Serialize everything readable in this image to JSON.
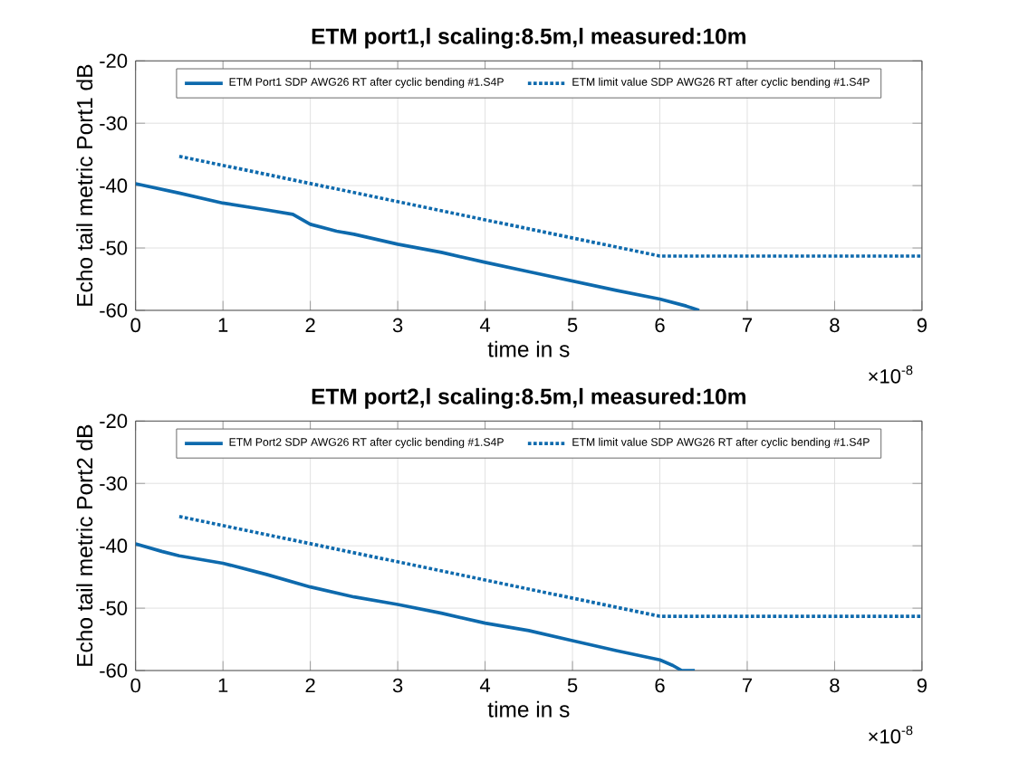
{
  "chart_data": [
    {
      "type": "line",
      "title": "ETM port1,l scaling:8.5m,l measured:10m",
      "xlabel": "time in s",
      "ylabel": "Echo tail metric Port1 dB",
      "xlim": [
        0,
        9
      ],
      "ylim": [
        -60,
        -20
      ],
      "xticks": [
        0,
        1,
        2,
        3,
        4,
        5,
        6,
        7,
        8,
        9
      ],
      "yticks": [
        -60,
        -50,
        -40,
        -30,
        -20
      ],
      "grid": true,
      "legend": "top",
      "annotations": [
        "×10$^{-8}$"
      ],
      "series": [
        {
          "name": "ETM Port1 SDP AWG26 RT after cyclic bending #1.S4P",
          "color": "#0e6aad",
          "line_style": "solid",
          "x": [
            0,
            0.5,
            1,
            1.5,
            1.8,
            2,
            2.3,
            2.5,
            3,
            3.5,
            4,
            4.5,
            5,
            5.5,
            6,
            6.3,
            6.45
          ],
          "values": [
            -39.7,
            -41.2,
            -42.8,
            -43.9,
            -44.6,
            -46.2,
            -47.3,
            -47.8,
            -49.4,
            -50.7,
            -52.3,
            -53.8,
            -55.3,
            -56.8,
            -58.2,
            -59.3,
            -60
          ]
        },
        {
          "name": "ETM limit value SDP AWG26 RT after cyclic bending #1.S4P",
          "color": "#0e6aad",
          "line_style": "dotted",
          "x": [
            0.5,
            6,
            9
          ],
          "values": [
            -35.3,
            -51.3,
            -51.3
          ]
        }
      ]
    },
    {
      "type": "line",
      "title": "ETM port2,l scaling:8.5m,l measured:10m",
      "xlabel": "time in s",
      "ylabel": "Echo tail metric Port2 dB",
      "xlim": [
        0,
        9
      ],
      "ylim": [
        -60,
        -20
      ],
      "xticks": [
        0,
        1,
        2,
        3,
        4,
        5,
        6,
        7,
        8,
        9
      ],
      "yticks": [
        -60,
        -50,
        -40,
        -30,
        -20
      ],
      "grid": true,
      "legend": "top",
      "annotations": [
        "×10$^{-8}$"
      ],
      "series": [
        {
          "name": "ETM Port2 SDP AWG26 RT after cyclic bending #1.S4P",
          "color": "#0e6aad",
          "line_style": "solid",
          "x": [
            0,
            0.3,
            0.5,
            1,
            1.5,
            2,
            2.5,
            3,
            3.5,
            4,
            4.5,
            5,
            5.5,
            6,
            6.15,
            6.25,
            6.4
          ],
          "values": [
            -39.7,
            -40.9,
            -41.6,
            -42.8,
            -44.6,
            -46.6,
            -48.2,
            -49.4,
            -50.8,
            -52.4,
            -53.6,
            -55.2,
            -56.8,
            -58.3,
            -59.2,
            -60,
            -60
          ]
        },
        {
          "name": "ETM limit value SDP AWG26 RT after cyclic bending #1.S4P",
          "color": "#0e6aad",
          "line_style": "dotted",
          "x": [
            0.5,
            6,
            9
          ],
          "values": [
            -35.3,
            -51.3,
            -51.3
          ]
        }
      ]
    }
  ]
}
